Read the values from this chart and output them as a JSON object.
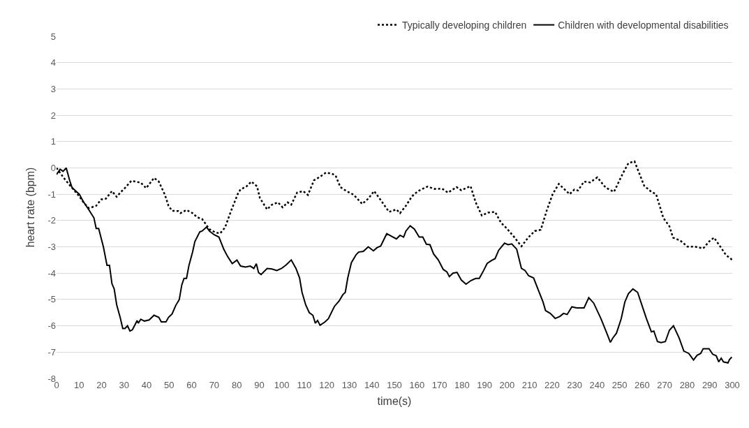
{
  "chart_data": {
    "type": "line",
    "xlabel": "time(s)",
    "ylabel": "heart rate (bpm)",
    "xlim": [
      0,
      300
    ],
    "xticks": [
      0,
      10,
      20,
      30,
      40,
      50,
      60,
      70,
      80,
      90,
      100,
      110,
      120,
      130,
      140,
      150,
      160,
      170,
      180,
      190,
      200,
      210,
      220,
      230,
      240,
      250,
      260,
      270,
      280,
      290,
      300
    ],
    "ylim": [
      -8,
      5
    ],
    "yticks": [
      -8,
      -7,
      -6,
      -5,
      -4,
      -3,
      -2,
      -1,
      0,
      1,
      2,
      3,
      4,
      5
    ],
    "grid": "y",
    "legend": "top right",
    "marker": "none",
    "series": [
      {
        "name": "Typically developing children",
        "color": "#000000",
        "line_style": "dotted",
        "x": [
          0,
          3.2,
          5.9,
          10.1,
          12.3,
          14.4,
          17.6,
          19.8,
          21.9,
          24.6,
          26.7,
          28.3,
          30.4,
          33.2,
          37.4,
          39.8,
          43.3,
          45.4,
          48.1,
          49.7,
          51.3,
          54,
          55,
          57.7,
          60.4,
          62.5,
          64.6,
          67.9,
          70.5,
          72.6,
          74.8,
          77.5,
          80.7,
          81.7,
          84.4,
          86.5,
          89,
          90.3,
          93.5,
          95.6,
          98.3,
          100.4,
          102.6,
          104.2,
          106.8,
          109.5,
          111.6,
          114.3,
          116.9,
          119.6,
          122.3,
          123.9,
          126,
          128.7,
          131.9,
          135.7,
          138.4,
          141,
          144.4,
          147.6,
          150.9,
          152.5,
          155.1,
          157.8,
          160.5,
          164.7,
          167.9,
          171.2,
          173.8,
          177.6,
          179.7,
          183.8,
          186.1,
          188.8,
          191.5,
          194.7,
          197.3,
          200,
          203.2,
          206.4,
          209.6,
          212.3,
          215,
          217.6,
          220.3,
          223,
          227.8,
          229.9,
          231.5,
          234.2,
          236.9,
          240.1,
          243.8,
          247.5,
          251.3,
          253.9,
          256.6,
          260.9,
          264.1,
          266.2,
          269.4,
          272.1,
          273.7,
          276.9,
          280.1,
          283.3,
          287.1,
          289.7,
          291.9,
          295.1,
          297.2,
          299.9
        ],
        "values": [
          0,
          -0.38,
          -0.66,
          -1.08,
          -1.35,
          -1.53,
          -1.44,
          -1.2,
          -1.17,
          -0.88,
          -1.1,
          -0.94,
          -0.76,
          -0.49,
          -0.56,
          -0.77,
          -0.38,
          -0.52,
          -1.02,
          -1.44,
          -1.63,
          -1.64,
          -1.72,
          -1.6,
          -1.72,
          -1.88,
          -1.94,
          -2.33,
          -2.45,
          -2.49,
          -2.27,
          -1.63,
          -0.94,
          -0.82,
          -0.7,
          -0.52,
          -0.7,
          -1.15,
          -1.58,
          -1.4,
          -1.31,
          -1.5,
          -1.31,
          -1.4,
          -0.94,
          -0.88,
          -1.03,
          -0.47,
          -0.34,
          -0.18,
          -0.22,
          -0.29,
          -0.73,
          -0.88,
          -1.02,
          -1.37,
          -1.17,
          -0.88,
          -1.28,
          -1.67,
          -1.58,
          -1.72,
          -1.44,
          -1.08,
          -0.88,
          -0.71,
          -0.8,
          -0.79,
          -0.94,
          -0.73,
          -0.85,
          -0.69,
          -1.31,
          -1.81,
          -1.7,
          -1.67,
          -2.08,
          -2.31,
          -2.63,
          -2.98,
          -2.63,
          -2.4,
          -2.35,
          -1.63,
          -0.99,
          -0.61,
          -1,
          -0.82,
          -0.86,
          -0.52,
          -0.55,
          -0.36,
          -0.75,
          -0.91,
          -0.23,
          0.18,
          0.25,
          -0.68,
          -0.91,
          -1,
          -1.9,
          -2.22,
          -2.65,
          -2.76,
          -2.99,
          -2.99,
          -3.06,
          -2.8,
          -2.65,
          -3.04,
          -3.31,
          -3.49
        ]
      },
      {
        "name": "Children with developmental disabilities",
        "color": "#000000",
        "line_style": "solid",
        "x": [
          0,
          1.6,
          2.9,
          4.3,
          5.9,
          6.9,
          10.1,
          11.8,
          14.4,
          16.6,
          17.6,
          18.7,
          20.8,
          22.4,
          23.5,
          24.6,
          25.6,
          26.7,
          28.3,
          29.4,
          30.4,
          31.5,
          32.6,
          33.7,
          35.8,
          36.3,
          37.4,
          39,
          41.1,
          43.3,
          45.4,
          46.5,
          48.6,
          49.7,
          51.3,
          52.9,
          54.5,
          55.6,
          56.6,
          57.7,
          58.8,
          60.4,
          61.4,
          63.6,
          64.6,
          66.6,
          67.9,
          70,
          72.1,
          74.3,
          75.9,
          78,
          80.1,
          81.7,
          83.9,
          86,
          87.6,
          88.7,
          89.7,
          90.8,
          93.5,
          95.6,
          97.8,
          99.9,
          102,
          104.2,
          106.3,
          107.9,
          109,
          110.6,
          112.2,
          113.8,
          114.9,
          115.9,
          117,
          119.1,
          120.7,
          122.3,
          123.4,
          125.5,
          127.1,
          128.2,
          129.3,
          130.9,
          133,
          134.1,
          136.2,
          138.4,
          140.7,
          142.3,
          143.9,
          146.6,
          148.7,
          150.9,
          152.5,
          154.1,
          155.1,
          157,
          158.9,
          161,
          162.6,
          164.2,
          165.8,
          167.4,
          169.5,
          171.7,
          173.3,
          174.4,
          176,
          177.8,
          179.7,
          181.8,
          184,
          186.1,
          187.7,
          189.3,
          191.2,
          193.1,
          194.7,
          196.3,
          198.9,
          200.5,
          202.1,
          204.3,
          206.4,
          208,
          209.6,
          211.8,
          213.9,
          216,
          217.1,
          219.2,
          221.4,
          223.5,
          225.1,
          226.7,
          228.8,
          230.9,
          234.2,
          236.3,
          238.5,
          241.7,
          244.3,
          245.9,
          247,
          248.6,
          250.7,
          252.3,
          253.9,
          255.9,
          258,
          259.8,
          261.9,
          264.1,
          265.2,
          266.8,
          268.4,
          270.3,
          272.1,
          273.9,
          276.4,
          278.5,
          280.7,
          282.8,
          284.4,
          286,
          287.1,
          289.7,
          291.3,
          292.9,
          294,
          295.1,
          296.1,
          298.1,
          298.8,
          299.8
        ],
        "values": [
          -0.25,
          -0.05,
          -0.13,
          0,
          -0.5,
          -0.75,
          -1,
          -1.27,
          -1.6,
          -1.9,
          -2.3,
          -2.3,
          -3,
          -3.7,
          -3.7,
          -4.4,
          -4.6,
          -5.2,
          -5.7,
          -6.1,
          -6.1,
          -6,
          -6.2,
          -6.15,
          -5.8,
          -5.9,
          -5.75,
          -5.82,
          -5.78,
          -5.6,
          -5.68,
          -5.85,
          -5.85,
          -5.68,
          -5.55,
          -5.23,
          -5,
          -4.45,
          -4.2,
          -4.2,
          -3.7,
          -3.2,
          -2.8,
          -2.43,
          -2.4,
          -2.25,
          -2.4,
          -2.54,
          -2.63,
          -3.1,
          -3.36,
          -3.64,
          -3.5,
          -3.73,
          -3.77,
          -3.73,
          -3.82,
          -3.64,
          -3.98,
          -4.05,
          -3.82,
          -3.84,
          -3.9,
          -3.82,
          -3.68,
          -3.5,
          -3.82,
          -4.18,
          -4.73,
          -5.2,
          -5.5,
          -5.6,
          -5.9,
          -5.8,
          -5.98,
          -5.86,
          -5.73,
          -5.45,
          -5.26,
          -5.05,
          -4.82,
          -4.73,
          -4.18,
          -3.6,
          -3.3,
          -3.2,
          -3.17,
          -3,
          -3.15,
          -3.03,
          -2.97,
          -2.5,
          -2.6,
          -2.7,
          -2.56,
          -2.63,
          -2.4,
          -2.2,
          -2.33,
          -2.63,
          -2.63,
          -2.9,
          -2.92,
          -3.27,
          -3.5,
          -3.86,
          -3.95,
          -4.13,
          -4,
          -3.97,
          -4.26,
          -4.42,
          -4.28,
          -4.2,
          -4.2,
          -3.95,
          -3.63,
          -3.52,
          -3.45,
          -3.13,
          -2.86,
          -2.92,
          -2.89,
          -3.09,
          -3.82,
          -3.9,
          -4.1,
          -4.18,
          -4.64,
          -5.1,
          -5.42,
          -5.53,
          -5.72,
          -5.64,
          -5.53,
          -5.57,
          -5.28,
          -5.32,
          -5.32,
          -4.93,
          -5.14,
          -5.73,
          -6.28,
          -6.63,
          -6.46,
          -6.28,
          -5.73,
          -5.1,
          -4.78,
          -4.6,
          -4.73,
          -5.19,
          -5.73,
          -6.23,
          -6.2,
          -6.6,
          -6.64,
          -6.6,
          -6.17,
          -6,
          -6.46,
          -6.96,
          -7.05,
          -7.3,
          -7.12,
          -7.05,
          -6.87,
          -6.87,
          -7.08,
          -7.14,
          -7.37,
          -7.23,
          -7.37,
          -7.41,
          -7.28,
          -7.19
        ]
      }
    ]
  }
}
